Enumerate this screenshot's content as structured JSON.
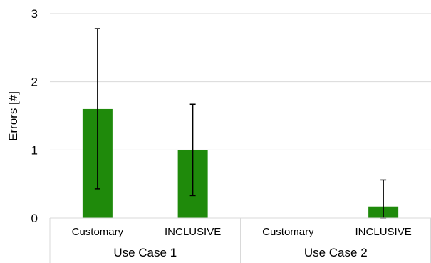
{
  "chart_data": {
    "type": "bar",
    "ylabel": "Errors [#]",
    "ylim": [
      0,
      3
    ],
    "yticks": [
      "0",
      "1",
      "2",
      "3"
    ],
    "grid": true,
    "legend": "none",
    "bar_color": "#1f8a0b",
    "groups": [
      {
        "label": "Use Case 1",
        "categories": [
          "Customary",
          "INCLUSIVE"
        ]
      },
      {
        "label": "Use Case 2",
        "categories": [
          "Customary",
          "INCLUSIVE"
        ]
      }
    ],
    "categories": [
      "Customary",
      "INCLUSIVE",
      "Customary",
      "INCLUSIVE"
    ],
    "values": [
      1.6,
      1.0,
      0,
      0.17
    ],
    "error_bars": [
      {
        "low": 0.43,
        "high": 2.78
      },
      {
        "low": 0.33,
        "high": 1.67
      },
      null,
      {
        "low": 0.0,
        "high": 0.56
      }
    ]
  }
}
